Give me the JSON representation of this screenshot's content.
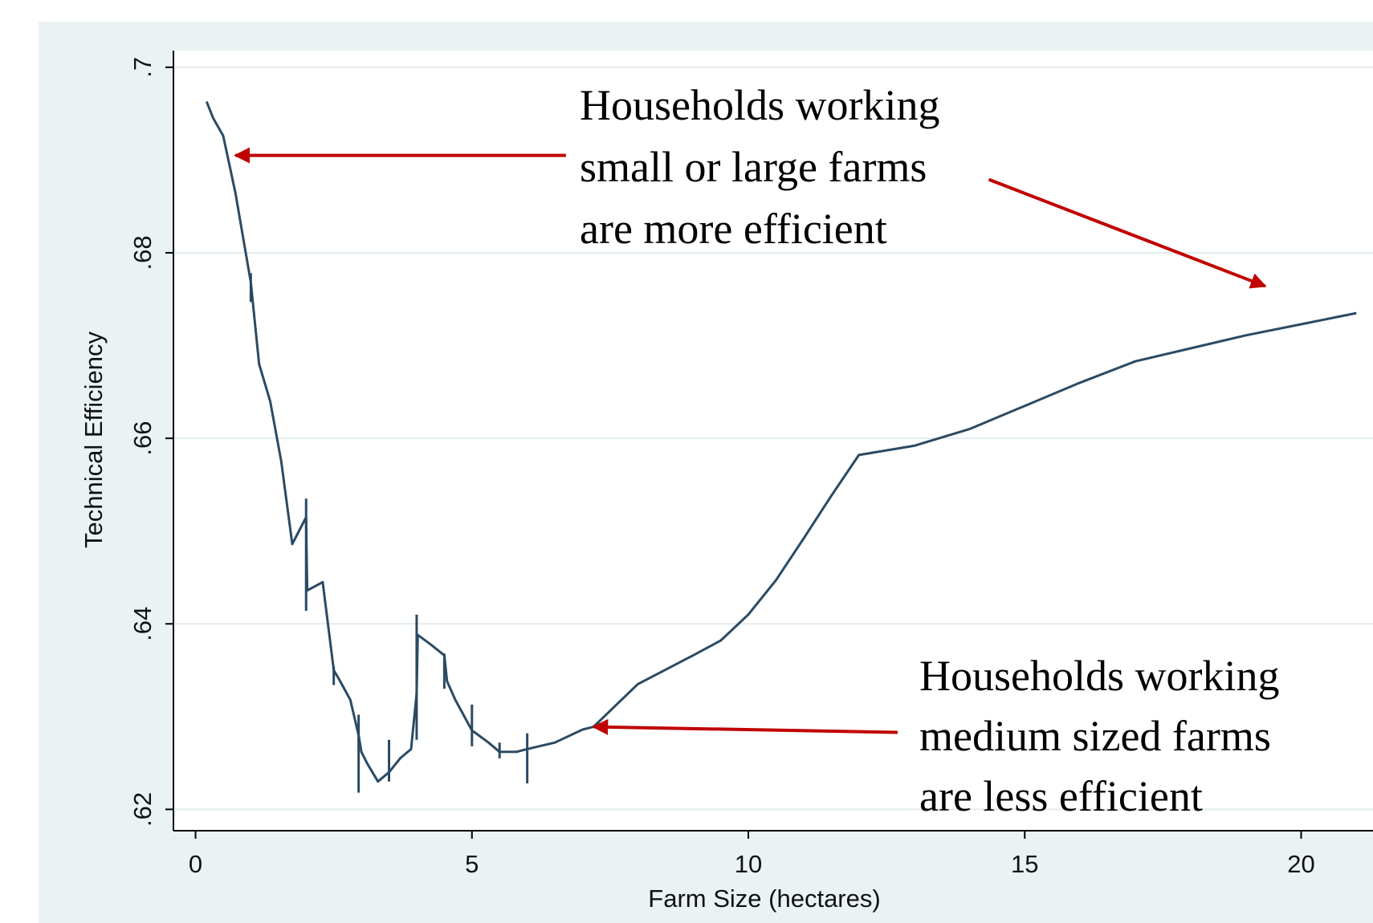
{
  "chart_data": {
    "type": "line",
    "title": "",
    "xlabel": "Farm Size (hectares)",
    "ylabel": "Technical Efficiency",
    "xlim": [
      -0.4,
      21.3
    ],
    "ylim": [
      0.6177,
      0.7018
    ],
    "x_ticks": [
      0,
      5,
      10,
      15,
      20
    ],
    "x_tick_labels": [
      "0",
      "5",
      "10",
      "15",
      "20"
    ],
    "y_ticks": [
      0.62,
      0.64,
      0.66,
      0.68,
      0.7
    ],
    "y_tick_labels": [
      ".62",
      ".64",
      ".66",
      ".68",
      ".7"
    ],
    "grid": "horizontal",
    "colors": {
      "line": "#2b4a63",
      "arrow": "#c00000",
      "plot_bg": "#ffffff",
      "outer_bg": "#eaf2f3",
      "grid": "#e3ecee"
    },
    "series": [
      {
        "x": [
          0.2,
          0.32,
          0.5,
          0.72,
          1.0,
          1.15,
          1.35,
          1.55,
          1.75,
          2.0,
          2.02,
          2.3,
          2.5,
          2.6,
          2.8,
          2.95,
          3.0,
          3.1,
          3.3,
          3.5,
          3.7,
          3.9,
          4.0,
          4.02,
          4.25,
          4.5,
          4.55,
          4.7,
          5.0,
          5.05,
          5.3,
          5.5,
          5.8,
          6.0,
          6.5,
          7.0,
          7.2,
          8.0,
          9.0,
          9.5,
          10.0,
          10.5,
          11.0,
          11.5,
          12.0,
          13.0,
          14.0,
          15.0,
          16.0,
          17.0,
          18.0,
          19.0,
          20.0,
          21.0
        ],
        "y": [
          0.6963,
          0.6945,
          0.6926,
          0.6865,
          0.6768,
          0.668,
          0.664,
          0.6575,
          0.6486,
          0.6515,
          0.6436,
          0.6445,
          0.635,
          0.634,
          0.6318,
          0.628,
          0.6262,
          0.625,
          0.623,
          0.624,
          0.6255,
          0.6265,
          0.6325,
          0.6388,
          0.6378,
          0.6366,
          0.6338,
          0.6318,
          0.6285,
          0.6283,
          0.6272,
          0.6262,
          0.6262,
          0.6265,
          0.6272,
          0.6286,
          0.6289,
          0.6335,
          0.6366,
          0.6382,
          0.641,
          0.6447,
          0.6492,
          0.6538,
          0.6582,
          0.6592,
          0.661,
          0.6635,
          0.666,
          0.6683,
          0.6697,
          0.6711,
          0.6723,
          0.6735
        ]
      }
    ],
    "error_spikes": [
      {
        "x": 1.0,
        "lo": 0.6747,
        "hi": 0.6778
      },
      {
        "x": 2.0,
        "lo": 0.6414,
        "hi": 0.6535
      },
      {
        "x": 2.5,
        "lo": 0.6334,
        "hi": 0.6354
      },
      {
        "x": 2.95,
        "lo": 0.6218,
        "hi": 0.6302
      },
      {
        "x": 3.5,
        "lo": 0.623,
        "hi": 0.6275
      },
      {
        "x": 4.0,
        "lo": 0.6275,
        "hi": 0.641
      },
      {
        "x": 4.5,
        "lo": 0.633,
        "hi": 0.6368
      },
      {
        "x": 5.0,
        "lo": 0.6268,
        "hi": 0.6313
      },
      {
        "x": 5.5,
        "lo": 0.6255,
        "hi": 0.6272
      },
      {
        "x": 6.0,
        "lo": 0.6228,
        "hi": 0.6282
      }
    ],
    "annotations": [
      {
        "lines": [
          "Households working",
          "small or large farms",
          "are more efficient"
        ]
      },
      {
        "lines": [
          "Households working",
          "medium sized farms",
          "are less efficient"
        ]
      }
    ],
    "arrows": [
      {
        "from": [
          6.7,
          0.6905
        ],
        "to": [
          0.72,
          0.6905
        ]
      },
      {
        "from": [
          14.35,
          0.6879
        ],
        "to": [
          19.35,
          0.6764
        ]
      },
      {
        "from": [
          12.7,
          0.6283
        ],
        "to": [
          7.2,
          0.6289
        ]
      }
    ]
  }
}
